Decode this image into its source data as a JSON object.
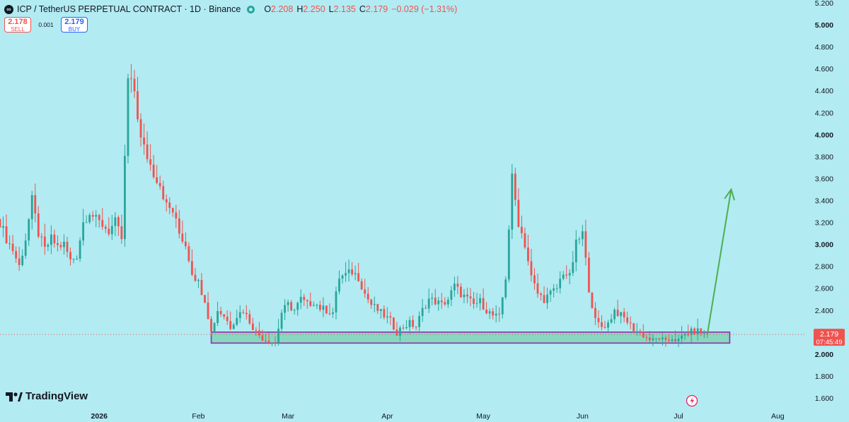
{
  "legend": {
    "symbol_icon": "coin-icon",
    "title": "ICP / TetherUS PERPETUAL CONTRACT · 1D · Binance",
    "open_key": "O",
    "open": "2.208",
    "high_key": "H",
    "high": "2.250",
    "low_key": "L",
    "low": "2.135",
    "close_key": "C",
    "close": "2.179",
    "change": "−0.029 (−1.31%)"
  },
  "trade": {
    "sell_price": "2.178",
    "sell_label": "SELL",
    "spread": "0.001",
    "buy_price": "2.179",
    "buy_label": "BUY"
  },
  "price_badge": {
    "price": "2.179",
    "countdown": "07:45:49"
  },
  "branding": {
    "logo_text": "TradingView"
  },
  "colors": {
    "background": "#b2ebf2",
    "up": "#26a69a",
    "down": "#ef5350",
    "zone_fill": "#7ed6b6",
    "zone_border": "#9c27b0",
    "arrow": "#4caf50"
  },
  "chart_data": {
    "type": "candlestick",
    "symbol": "ICP / TetherUS PERPETUAL CONTRACT",
    "timeframe": "1D",
    "exchange": "Binance",
    "y_axis": {
      "range": [
        1.5,
        5.2
      ],
      "ticks": [
        {
          "value": 5.2,
          "label": "5.200",
          "bold": false
        },
        {
          "value": 5.0,
          "label": "5.000",
          "bold": true
        },
        {
          "value": 4.8,
          "label": "4.800",
          "bold": false
        },
        {
          "value": 4.6,
          "label": "4.600",
          "bold": false
        },
        {
          "value": 4.4,
          "label": "4.400",
          "bold": false
        },
        {
          "value": 4.2,
          "label": "4.200",
          "bold": false
        },
        {
          "value": 4.0,
          "label": "4.000",
          "bold": true
        },
        {
          "value": 3.8,
          "label": "3.800",
          "bold": false
        },
        {
          "value": 3.6,
          "label": "3.600",
          "bold": false
        },
        {
          "value": 3.4,
          "label": "3.400",
          "bold": false
        },
        {
          "value": 3.2,
          "label": "3.200",
          "bold": false
        },
        {
          "value": 3.0,
          "label": "3.000",
          "bold": true
        },
        {
          "value": 2.8,
          "label": "2.800",
          "bold": false
        },
        {
          "value": 2.6,
          "label": "2.600",
          "bold": false
        },
        {
          "value": 2.4,
          "label": "2.400",
          "bold": false
        },
        {
          "value": 2.0,
          "label": "2.000",
          "bold": true
        },
        {
          "value": 1.8,
          "label": "1.800",
          "bold": false
        },
        {
          "value": 1.6,
          "label": "1.600",
          "bold": false
        }
      ]
    },
    "x_axis": {
      "range": [
        "2025-12-01",
        "2026-08-10"
      ],
      "ticks": [
        {
          "date": "2026-01-01",
          "label": "2026",
          "bold": true
        },
        {
          "date": "2026-02-01",
          "label": "Feb",
          "bold": false
        },
        {
          "date": "2026-03-01",
          "label": "Mar",
          "bold": false
        },
        {
          "date": "2026-04-01",
          "label": "Apr",
          "bold": false
        },
        {
          "date": "2026-05-01",
          "label": "May",
          "bold": false
        },
        {
          "date": "2026-06-01",
          "label": "Jun",
          "bold": false
        },
        {
          "date": "2026-07-01",
          "label": "Jul",
          "bold": false
        },
        {
          "date": "2026-08-01",
          "label": "Aug",
          "bold": false
        }
      ]
    },
    "current_price": 2.179,
    "support_zone": {
      "low": 2.1,
      "high": 2.2,
      "start": "2026-02-05",
      "end": "2026-07-17"
    },
    "projection_arrow": {
      "from_date": "2026-07-10",
      "from_price": 2.18,
      "to_date": "2026-07-17",
      "to_price": 3.5
    },
    "daily_closes": [
      [
        "2025-12-01",
        3.2
      ],
      [
        "2025-12-03",
        3.05
      ],
      [
        "2025-12-05",
        2.95
      ],
      [
        "2025-12-07",
        2.8
      ],
      [
        "2025-12-09",
        3.05
      ],
      [
        "2025-12-11",
        3.4
      ],
      [
        "2025-12-13",
        3.1
      ],
      [
        "2025-12-15",
        2.95
      ],
      [
        "2025-12-17",
        3.05
      ],
      [
        "2025-12-19",
        2.98
      ],
      [
        "2025-12-21",
        3.0
      ],
      [
        "2025-12-23",
        2.85
      ],
      [
        "2025-12-25",
        2.9
      ],
      [
        "2025-12-27",
        3.2
      ],
      [
        "2025-12-29",
        3.3
      ],
      [
        "2025-12-31",
        3.22
      ],
      [
        "2026-01-02",
        3.18
      ],
      [
        "2026-01-04",
        3.12
      ],
      [
        "2026-01-06",
        3.2
      ],
      [
        "2026-01-08",
        3.05
      ],
      [
        "2026-01-10",
        4.5
      ],
      [
        "2026-01-12",
        4.4
      ],
      [
        "2026-01-14",
        3.95
      ],
      [
        "2026-01-16",
        3.8
      ],
      [
        "2026-01-18",
        3.65
      ],
      [
        "2026-01-20",
        3.55
      ],
      [
        "2026-01-22",
        3.35
      ],
      [
        "2026-01-24",
        3.3
      ],
      [
        "2026-01-26",
        3.1
      ],
      [
        "2026-01-28",
        3.0
      ],
      [
        "2026-01-30",
        2.75
      ],
      [
        "2026-02-01",
        2.65
      ],
      [
        "2026-02-03",
        2.5
      ],
      [
        "2026-02-05",
        2.2
      ],
      [
        "2026-02-07",
        2.4
      ],
      [
        "2026-02-09",
        2.35
      ],
      [
        "2026-02-11",
        2.25
      ],
      [
        "2026-02-13",
        2.35
      ],
      [
        "2026-02-15",
        2.4
      ],
      [
        "2026-02-17",
        2.3
      ],
      [
        "2026-02-19",
        2.2
      ],
      [
        "2026-02-21",
        2.15
      ],
      [
        "2026-02-23",
        2.12
      ],
      [
        "2026-02-25",
        2.1
      ],
      [
        "2026-02-27",
        2.38
      ],
      [
        "2026-03-01",
        2.45
      ],
      [
        "2026-03-03",
        2.4
      ],
      [
        "2026-03-05",
        2.5
      ],
      [
        "2026-03-07",
        2.45
      ],
      [
        "2026-03-09",
        2.48
      ],
      [
        "2026-03-11",
        2.42
      ],
      [
        "2026-03-13",
        2.4
      ],
      [
        "2026-03-15",
        2.38
      ],
      [
        "2026-03-17",
        2.7
      ],
      [
        "2026-03-19",
        2.72
      ],
      [
        "2026-03-21",
        2.75
      ],
      [
        "2026-03-23",
        2.7
      ],
      [
        "2026-03-25",
        2.55
      ],
      [
        "2026-03-27",
        2.45
      ],
      [
        "2026-03-29",
        2.4
      ],
      [
        "2026-03-31",
        2.35
      ],
      [
        "2026-04-02",
        2.3
      ],
      [
        "2026-04-04",
        2.2
      ],
      [
        "2026-04-06",
        2.25
      ],
      [
        "2026-04-08",
        2.28
      ],
      [
        "2026-04-10",
        2.25
      ],
      [
        "2026-04-12",
        2.4
      ],
      [
        "2026-04-14",
        2.5
      ],
      [
        "2026-04-16",
        2.48
      ],
      [
        "2026-04-18",
        2.45
      ],
      [
        "2026-04-20",
        2.5
      ],
      [
        "2026-04-22",
        2.62
      ],
      [
        "2026-04-24",
        2.55
      ],
      [
        "2026-04-26",
        2.5
      ],
      [
        "2026-04-28",
        2.45
      ],
      [
        "2026-04-30",
        2.48
      ],
      [
        "2026-05-02",
        2.4
      ],
      [
        "2026-05-04",
        2.35
      ],
      [
        "2026-05-06",
        2.33
      ],
      [
        "2026-05-08",
        2.7
      ],
      [
        "2026-05-10",
        3.6
      ],
      [
        "2026-05-12",
        3.2
      ],
      [
        "2026-05-14",
        3.0
      ],
      [
        "2026-05-16",
        2.7
      ],
      [
        "2026-05-18",
        2.55
      ],
      [
        "2026-05-20",
        2.5
      ],
      [
        "2026-05-22",
        2.55
      ],
      [
        "2026-05-24",
        2.6
      ],
      [
        "2026-05-26",
        2.75
      ],
      [
        "2026-05-28",
        2.7
      ],
      [
        "2026-05-30",
        3.0
      ],
      [
        "2026-06-01",
        3.1
      ],
      [
        "2026-06-03",
        2.6
      ],
      [
        "2026-06-05",
        2.3
      ],
      [
        "2026-06-07",
        2.25
      ],
      [
        "2026-06-09",
        2.28
      ],
      [
        "2026-06-11",
        2.4
      ],
      [
        "2026-06-13",
        2.35
      ],
      [
        "2026-06-15",
        2.3
      ],
      [
        "2026-06-17",
        2.22
      ],
      [
        "2026-06-19",
        2.2
      ],
      [
        "2026-06-21",
        2.15
      ],
      [
        "2026-06-23",
        2.12
      ],
      [
        "2026-06-25",
        2.15
      ],
      [
        "2026-06-27",
        2.1
      ],
      [
        "2026-06-29",
        2.15
      ],
      [
        "2026-07-01",
        2.12
      ],
      [
        "2026-07-03",
        2.18
      ],
      [
        "2026-07-05",
        2.2
      ],
      [
        "2026-07-07",
        2.21
      ],
      [
        "2026-07-09",
        2.18
      ],
      [
        "2026-07-10",
        2.18
      ]
    ]
  }
}
